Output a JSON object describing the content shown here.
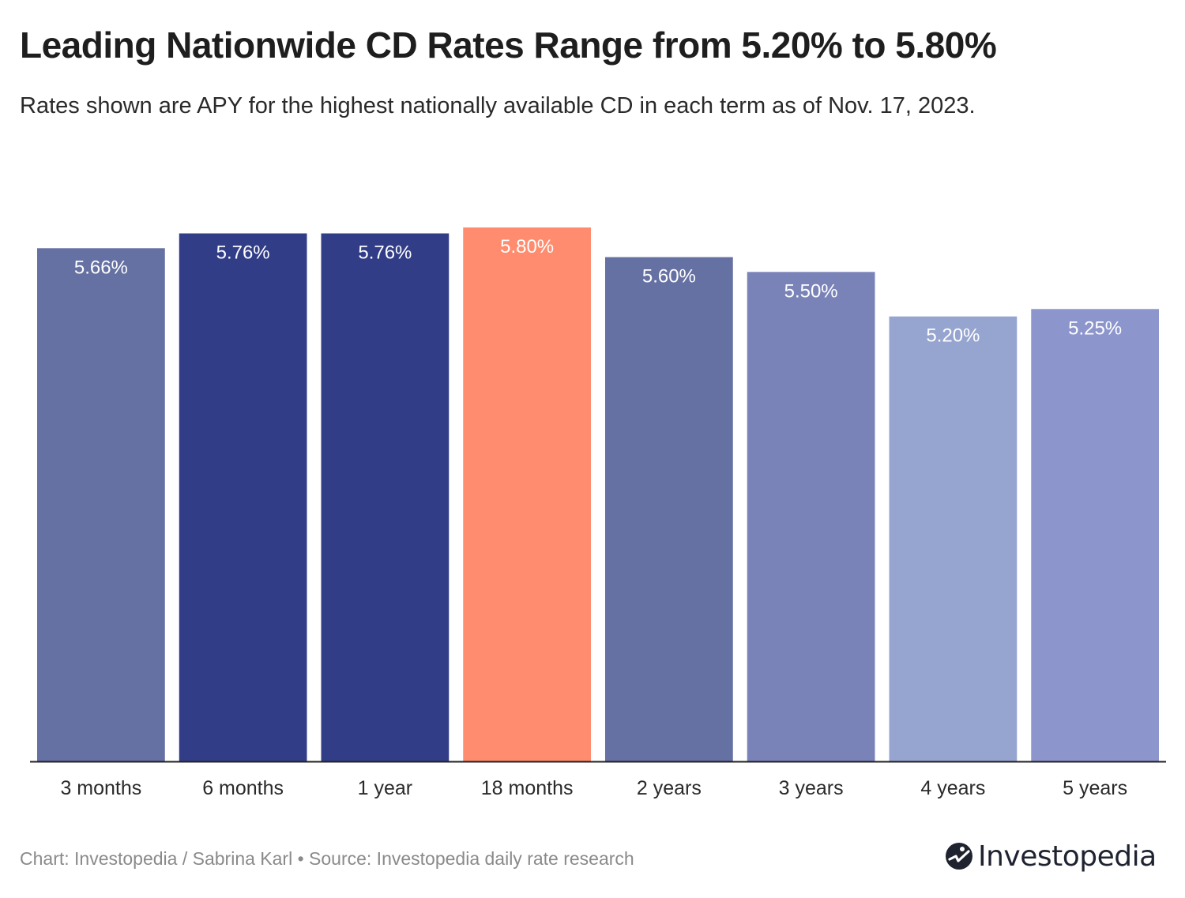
{
  "header": {
    "title": "Leading Nationwide CD Rates Range from 5.20% to 5.80%",
    "subtitle": "Rates shown are APY for the highest nationally available CD in each term as of Nov. 17, 2023."
  },
  "footer": {
    "note": "Chart: Investopedia / Sabrina Karl • Source: Investopedia daily rate research",
    "logo_text": "Investopedia"
  },
  "chart_data": {
    "type": "bar",
    "title": "Leading Nationwide CD Rates Range from 5.20% to 5.80%",
    "xlabel": "",
    "ylabel": "",
    "categories": [
      "3 months",
      "6 months",
      "1 year",
      "18 months",
      "2 years",
      "3 years",
      "4 years",
      "5 years"
    ],
    "values": [
      5.66,
      5.76,
      5.76,
      5.8,
      5.6,
      5.5,
      5.2,
      5.25
    ],
    "labels": [
      "5.66%",
      "5.76%",
      "5.76%",
      "5.80%",
      "5.60%",
      "5.50%",
      "5.20%",
      "5.25%"
    ],
    "colors": [
      "#6570a3",
      "#323d88",
      "#323d88",
      "#ff8c6e",
      "#6570a3",
      "#7a83b8",
      "#96a4d0",
      "#8c95cc"
    ],
    "ylim": [
      2.2,
      5.8
    ],
    "grid": false,
    "legend": "none"
  }
}
